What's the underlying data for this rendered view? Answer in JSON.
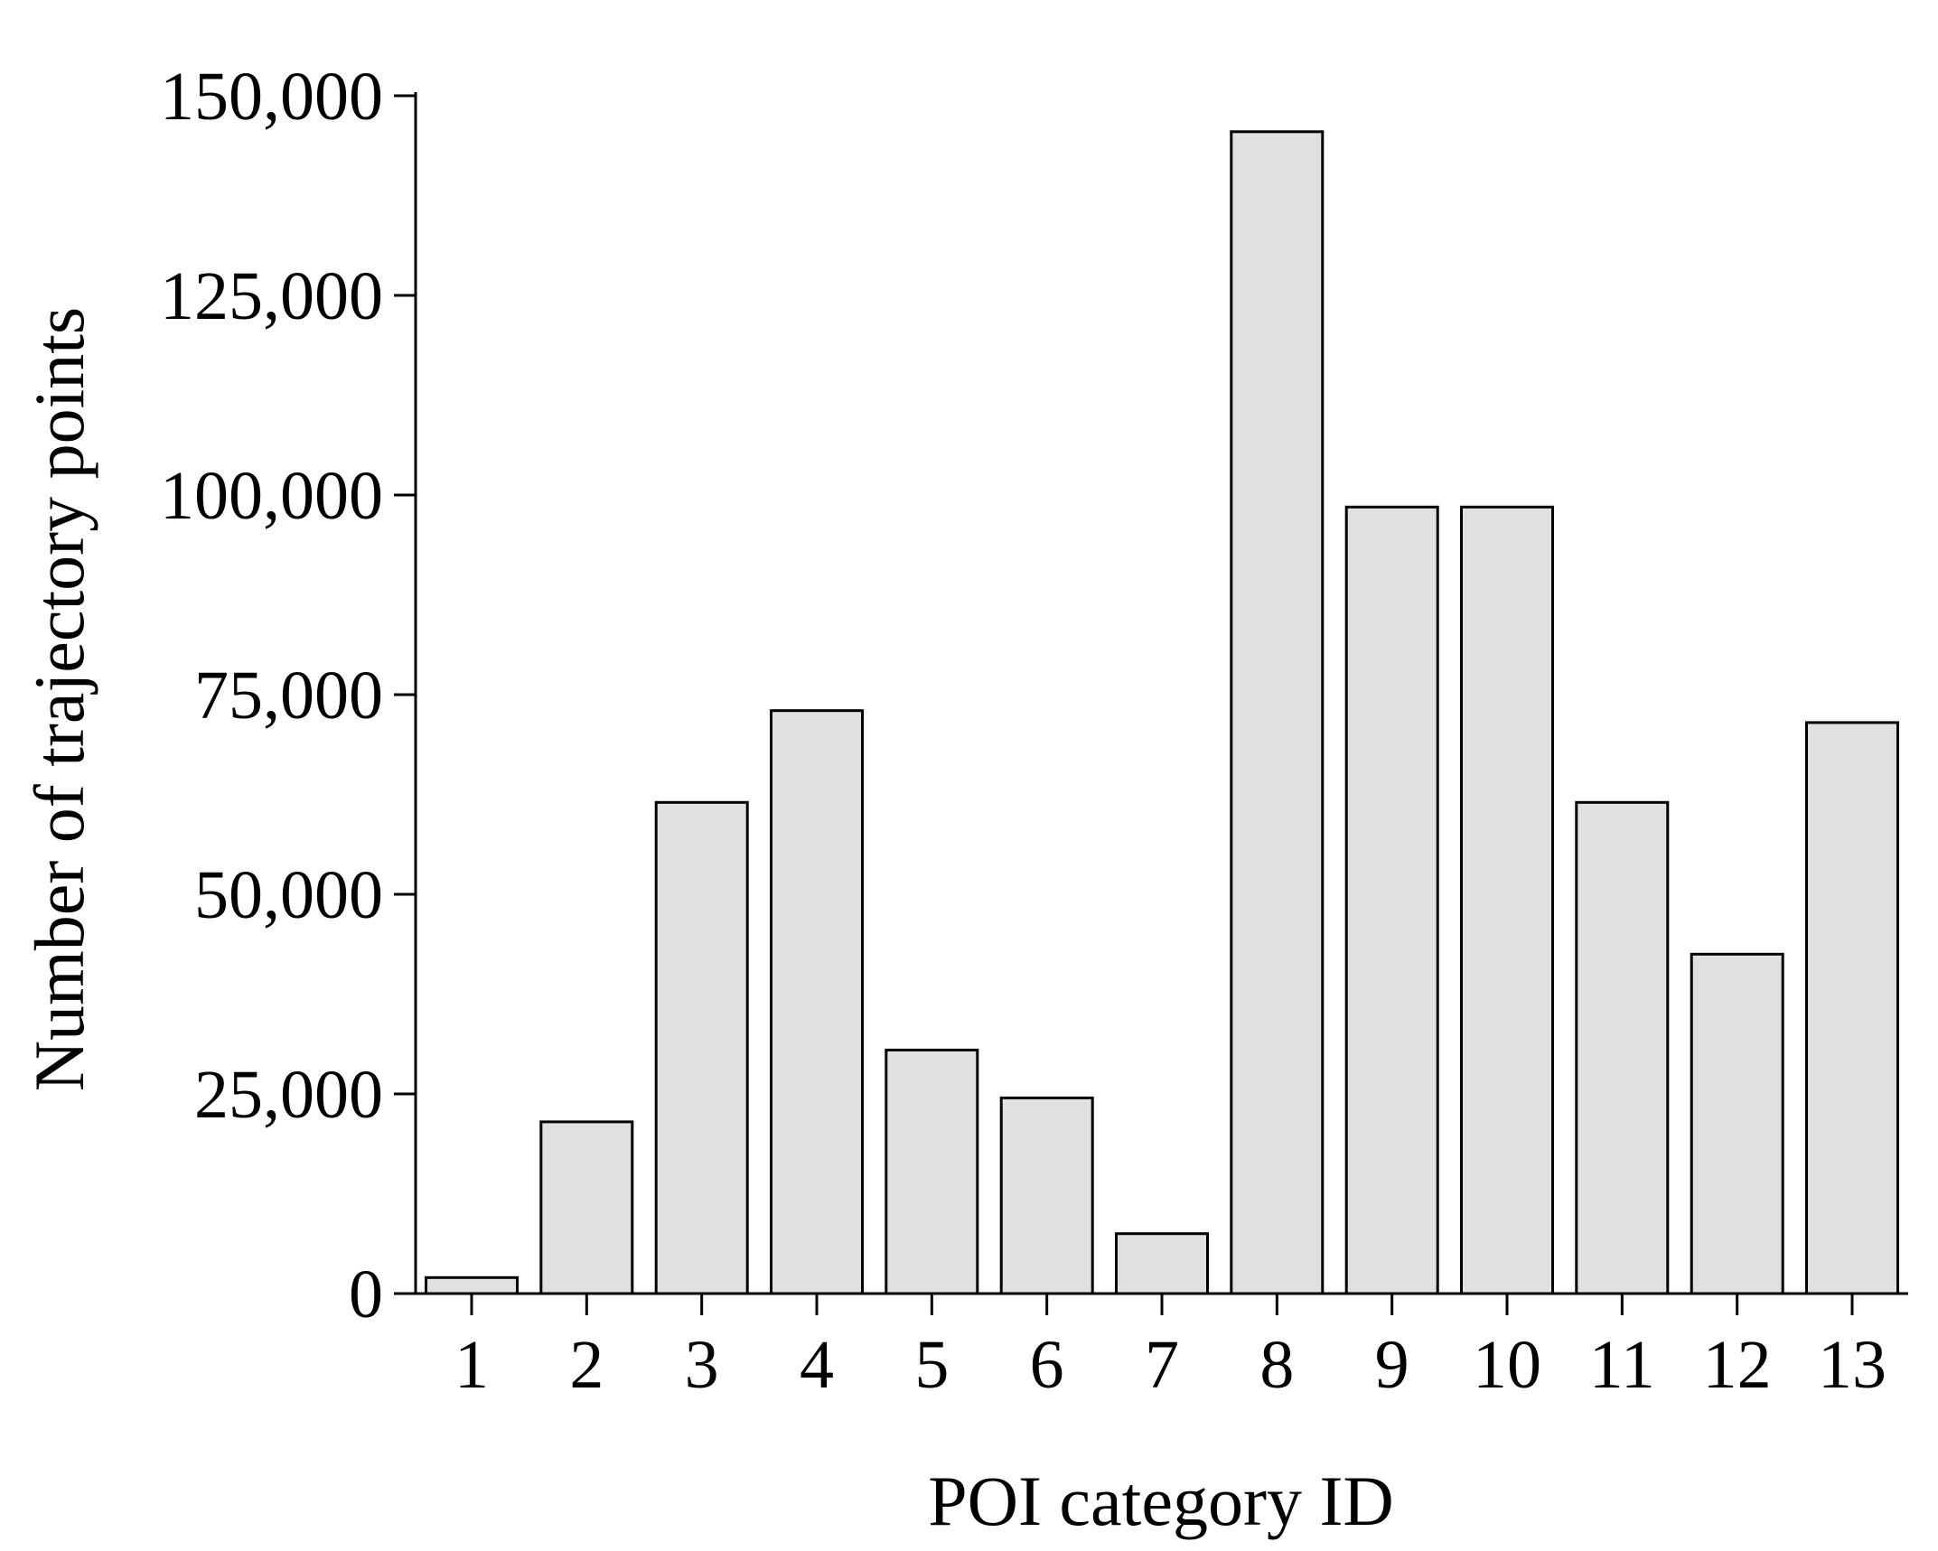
{
  "chart_data": {
    "type": "bar",
    "title": "",
    "xlabel": "POI category ID",
    "ylabel": "Number of trajectory points",
    "categories": [
      "1",
      "2",
      "3",
      "4",
      "5",
      "6",
      "7",
      "8",
      "9",
      "10",
      "11",
      "12",
      "13"
    ],
    "values": [
      2000,
      21500,
      61500,
      73000,
      30500,
      24500,
      7500,
      145500,
      98500,
      98500,
      61500,
      42500,
      71500
    ],
    "ylim": [
      0,
      150000
    ],
    "yticks": [
      0,
      25000,
      50000,
      75000,
      100000,
      125000,
      150000
    ],
    "ytick_labels": [
      "0",
      "25,000",
      "50,000",
      "75,000",
      "100,000",
      "125,000",
      "150,000"
    ],
    "grid": false,
    "legend": "none",
    "colors": {
      "bar_fill": "#e0e0e0",
      "bar_stroke": "#000000",
      "axis": "#000000"
    }
  }
}
